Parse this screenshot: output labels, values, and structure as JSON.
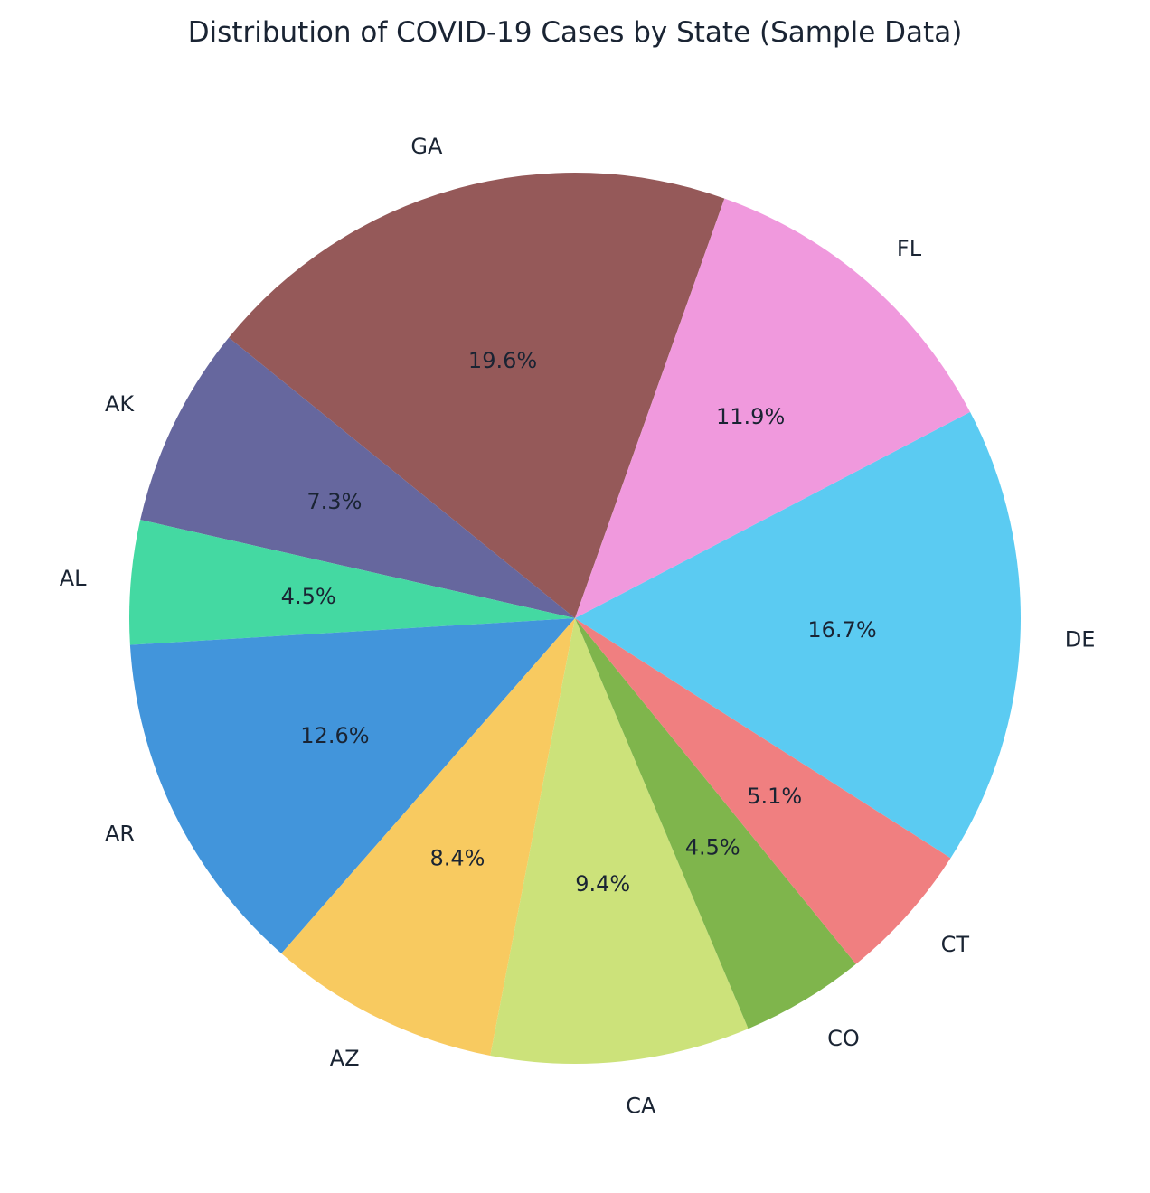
{
  "chart_data": {
    "type": "pie",
    "title": "Distribution of COVID-19 Cases by State (Sample Data)",
    "slices": [
      {
        "label": "GA",
        "percent": 19.6,
        "percent_label": "19.6%",
        "color": "#955959"
      },
      {
        "label": "AK",
        "percent": 7.3,
        "percent_label": "7.3%",
        "color": "#66679e"
      },
      {
        "label": "AL",
        "percent": 4.5,
        "percent_label": "4.5%",
        "color": "#44d9a2"
      },
      {
        "label": "AR",
        "percent": 12.6,
        "percent_label": "12.6%",
        "color": "#4295db"
      },
      {
        "label": "AZ",
        "percent": 8.4,
        "percent_label": "8.4%",
        "color": "#f8ca60"
      },
      {
        "label": "CA",
        "percent": 9.4,
        "percent_label": "9.4%",
        "color": "#cce27a"
      },
      {
        "label": "CO",
        "percent": 4.5,
        "percent_label": "4.5%",
        "color": "#7fb54c"
      },
      {
        "label": "CT",
        "percent": 5.1,
        "percent_label": "5.1%",
        "color": "#f07f80"
      },
      {
        "label": "DE",
        "percent": 16.7,
        "percent_label": "16.7%",
        "color": "#5bcbf2"
      },
      {
        "label": "FL",
        "percent": 11.9,
        "percent_label": "11.9%",
        "color": "#f099dd"
      }
    ]
  }
}
